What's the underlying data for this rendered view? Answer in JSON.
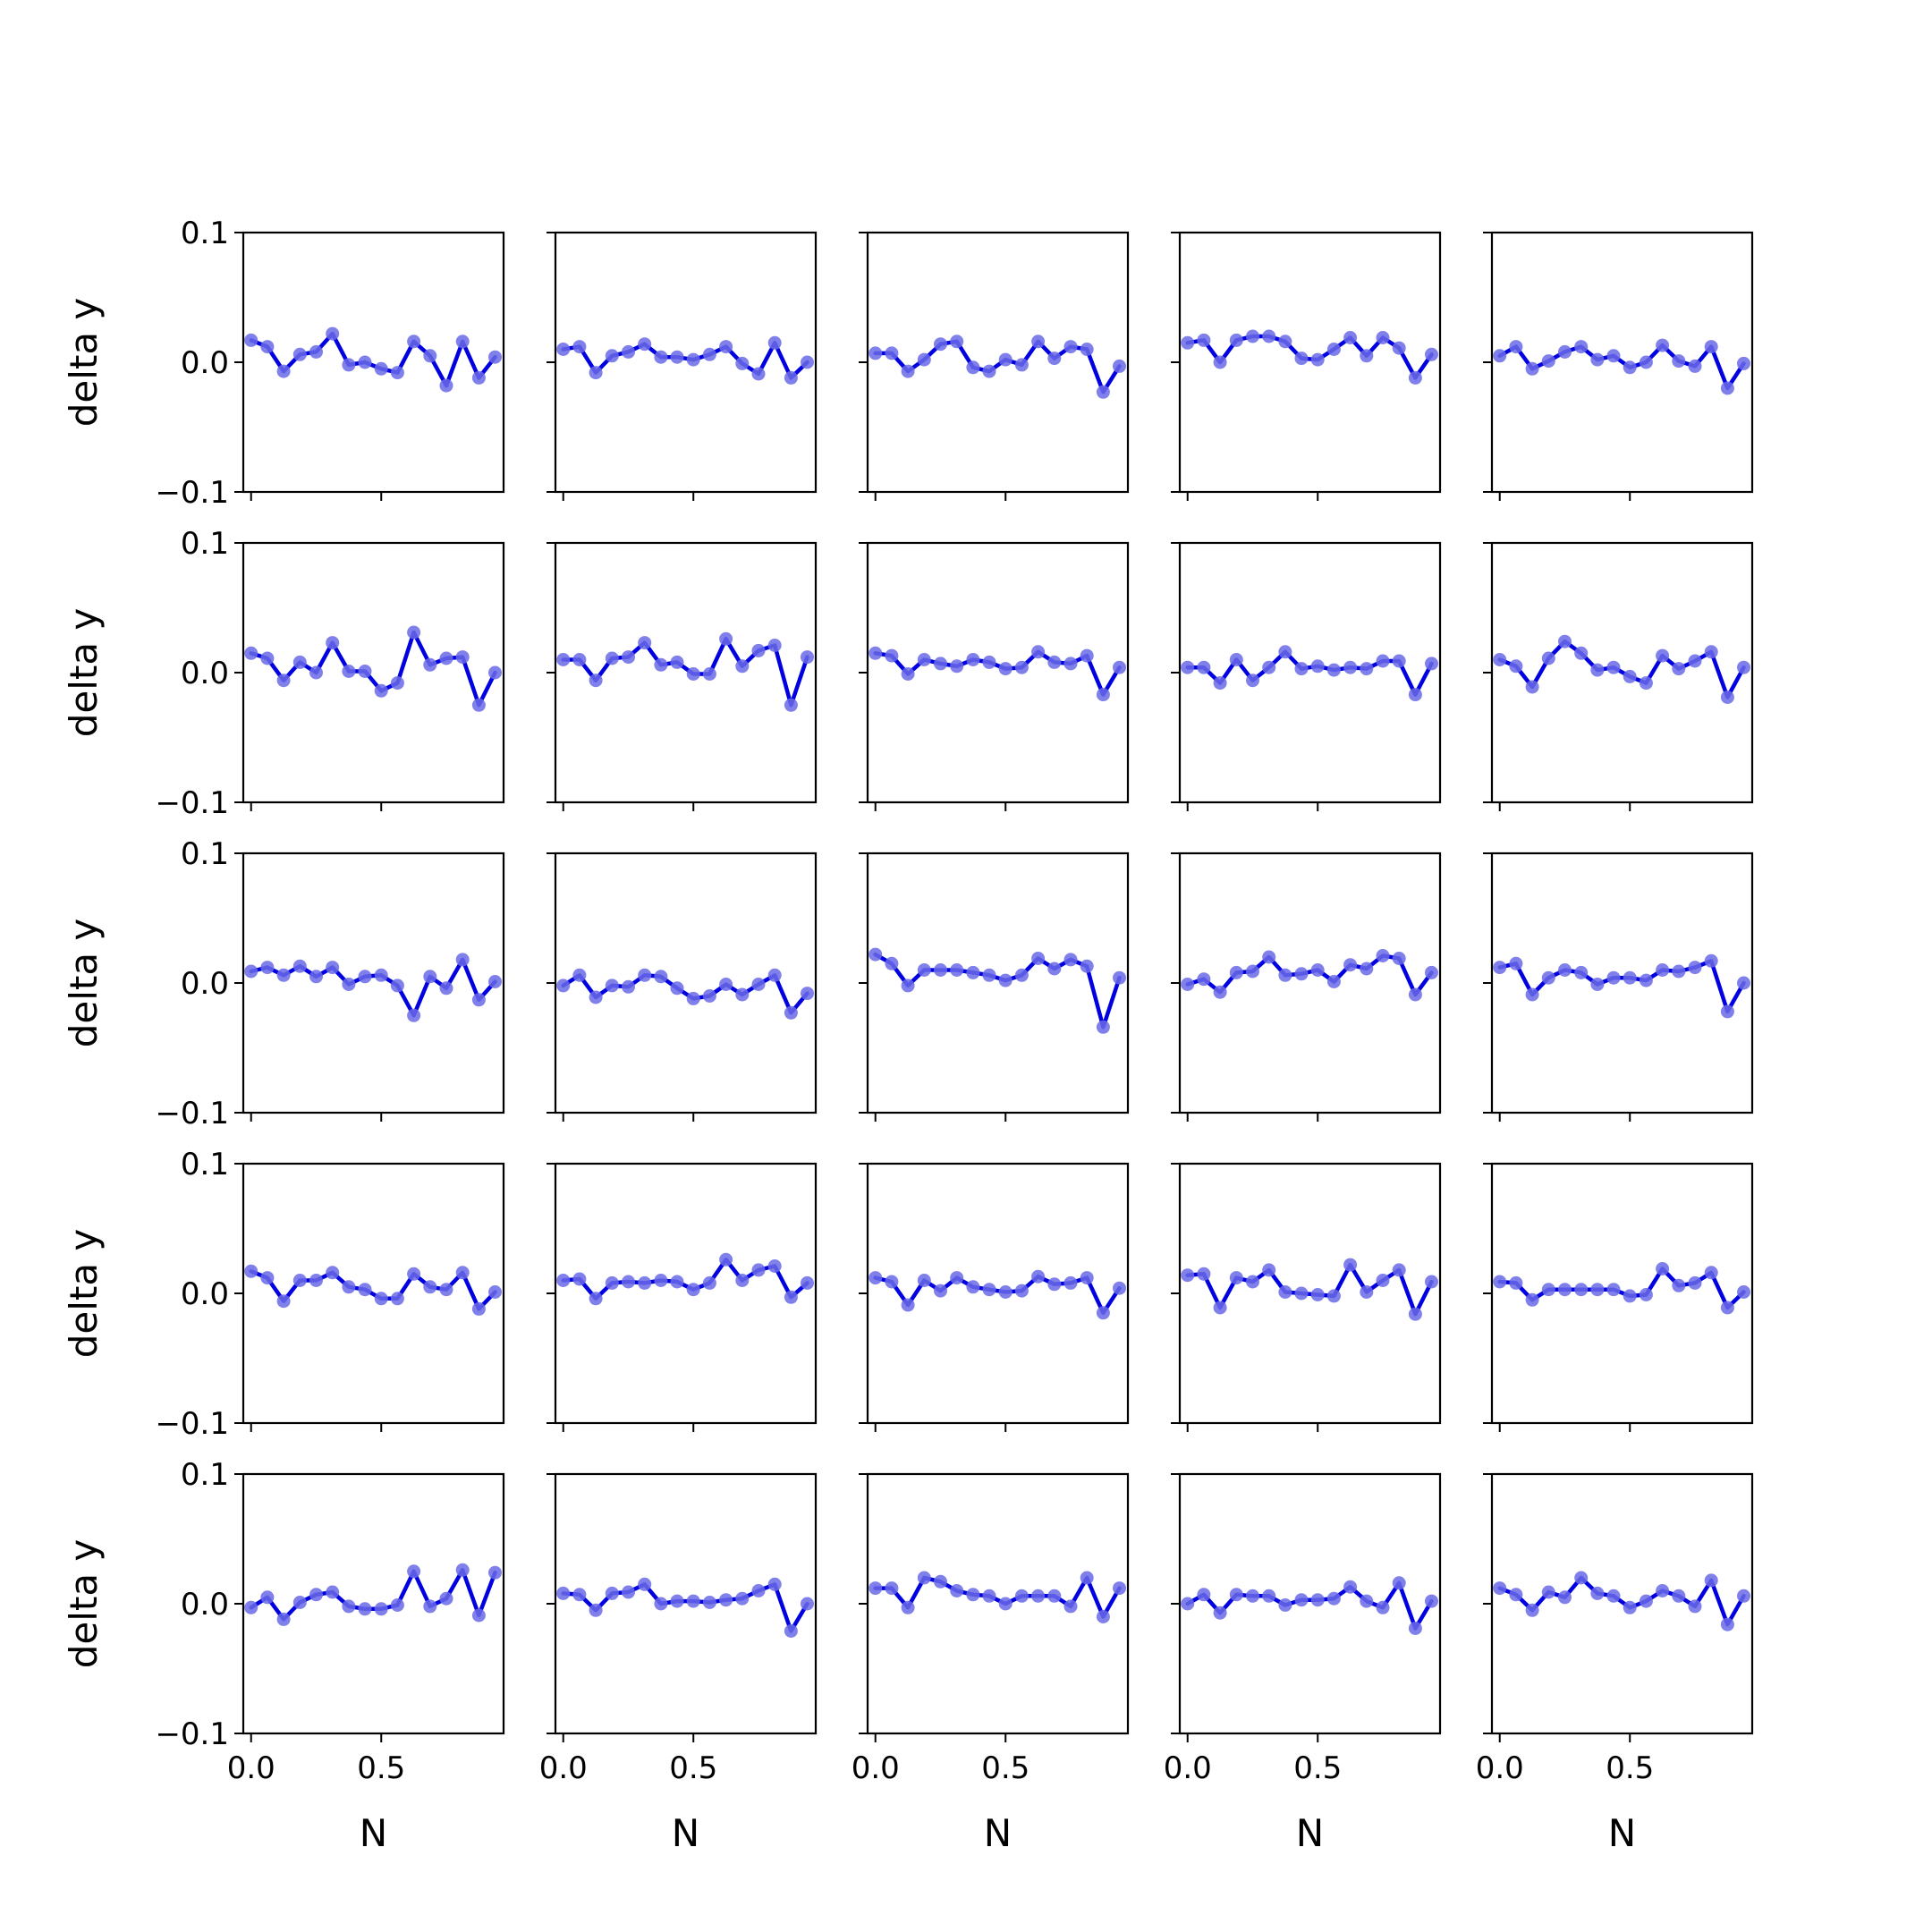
{
  "figure": {
    "grid": "5x5",
    "xlabel": "N",
    "ylabel": "delta y",
    "colors": {
      "line": "#0000e0",
      "marker": "#6a6ae8",
      "axes": "#000000"
    }
  },
  "chart_data": {
    "type": "line",
    "layout": "5x5 grid of subplots, shared axes",
    "x": [
      0.0,
      0.0625,
      0.125,
      0.1875,
      0.25,
      0.3125,
      0.375,
      0.4375,
      0.5,
      0.5625,
      0.625,
      0.6875,
      0.75,
      0.8125,
      0.875,
      0.9375
    ],
    "xlim": [
      -0.03,
      0.97
    ],
    "ylim": [
      -0.1,
      0.1
    ],
    "xticks": [
      0.0,
      0.5
    ],
    "xtick_labels": [
      "0.0",
      "0.5"
    ],
    "yticks": [
      -0.1,
      0.0,
      0.1
    ],
    "ytick_labels": [
      "−0.1",
      "0.0",
      "0.1"
    ],
    "xlabel": "N",
    "ylabel": "delta y",
    "grid": false,
    "markers": true,
    "panels": [
      {
        "row": 1,
        "col": 1,
        "y": [
          0.017,
          0.012,
          -0.007,
          0.006,
          0.008,
          0.022,
          -0.002,
          0.0,
          -0.005,
          -0.008,
          0.016,
          0.005,
          -0.018,
          0.016,
          -0.012,
          0.004
        ]
      },
      {
        "row": 1,
        "col": 2,
        "y": [
          0.01,
          0.012,
          -0.008,
          0.005,
          0.008,
          0.014,
          0.004,
          0.004,
          0.002,
          0.006,
          0.012,
          -0.001,
          -0.009,
          0.015,
          -0.012,
          0.0
        ]
      },
      {
        "row": 1,
        "col": 3,
        "y": [
          0.007,
          0.007,
          -0.007,
          0.002,
          0.014,
          0.016,
          -0.004,
          -0.007,
          0.002,
          -0.002,
          0.016,
          0.003,
          0.012,
          0.01,
          -0.023,
          -0.003
        ]
      },
      {
        "row": 1,
        "col": 4,
        "y": [
          0.015,
          0.017,
          0.0,
          0.017,
          0.02,
          0.02,
          0.016,
          0.003,
          0.002,
          0.01,
          0.019,
          0.005,
          0.019,
          0.011,
          -0.012,
          0.006
        ]
      },
      {
        "row": 1,
        "col": 5,
        "y": [
          0.005,
          0.012,
          -0.005,
          0.001,
          0.008,
          0.012,
          0.002,
          0.005,
          -0.004,
          0.0,
          0.013,
          0.001,
          -0.003,
          0.012,
          -0.02,
          -0.001
        ]
      },
      {
        "row": 2,
        "col": 1,
        "y": [
          0.015,
          0.011,
          -0.006,
          0.008,
          0.0,
          0.023,
          0.001,
          0.001,
          -0.014,
          -0.008,
          0.031,
          0.006,
          0.011,
          0.012,
          -0.025,
          0.0
        ]
      },
      {
        "row": 2,
        "col": 2,
        "y": [
          0.01,
          0.01,
          -0.006,
          0.011,
          0.012,
          0.023,
          0.006,
          0.008,
          -0.001,
          -0.001,
          0.026,
          0.005,
          0.017,
          0.021,
          -0.025,
          0.012
        ]
      },
      {
        "row": 2,
        "col": 3,
        "y": [
          0.015,
          0.013,
          -0.001,
          0.01,
          0.007,
          0.005,
          0.01,
          0.008,
          0.003,
          0.004,
          0.016,
          0.008,
          0.007,
          0.013,
          -0.017,
          0.004
        ]
      },
      {
        "row": 2,
        "col": 4,
        "y": [
          0.004,
          0.004,
          -0.008,
          0.01,
          -0.006,
          0.004,
          0.016,
          0.003,
          0.005,
          0.002,
          0.004,
          0.003,
          0.009,
          0.009,
          -0.017,
          0.007
        ]
      },
      {
        "row": 2,
        "col": 5,
        "y": [
          0.01,
          0.005,
          -0.011,
          0.011,
          0.024,
          0.015,
          0.002,
          0.004,
          -0.003,
          -0.008,
          0.013,
          0.003,
          0.009,
          0.016,
          -0.019,
          0.004
        ]
      },
      {
        "row": 3,
        "col": 1,
        "y": [
          0.009,
          0.012,
          0.006,
          0.013,
          0.005,
          0.012,
          -0.001,
          0.005,
          0.006,
          -0.002,
          -0.025,
          0.005,
          -0.004,
          0.018,
          -0.013,
          0.001
        ]
      },
      {
        "row": 3,
        "col": 2,
        "y": [
          -0.002,
          0.006,
          -0.011,
          -0.002,
          -0.003,
          0.006,
          0.005,
          -0.004,
          -0.012,
          -0.01,
          -0.001,
          -0.009,
          -0.001,
          0.006,
          -0.023,
          -0.008
        ]
      },
      {
        "row": 3,
        "col": 3,
        "y": [
          0.022,
          0.015,
          -0.002,
          0.01,
          0.01,
          0.01,
          0.008,
          0.006,
          0.002,
          0.006,
          0.019,
          0.011,
          0.018,
          0.013,
          -0.034,
          0.004
        ]
      },
      {
        "row": 3,
        "col": 4,
        "y": [
          -0.001,
          0.003,
          -0.007,
          0.008,
          0.009,
          0.02,
          0.006,
          0.007,
          0.01,
          0.001,
          0.014,
          0.011,
          0.021,
          0.019,
          -0.009,
          0.008
        ]
      },
      {
        "row": 3,
        "col": 5,
        "y": [
          0.012,
          0.015,
          -0.009,
          0.004,
          0.01,
          0.008,
          -0.001,
          0.004,
          0.004,
          0.002,
          0.01,
          0.009,
          0.012,
          0.017,
          -0.022,
          0.0
        ]
      },
      {
        "row": 4,
        "col": 1,
        "y": [
          0.017,
          0.012,
          -0.006,
          0.01,
          0.01,
          0.016,
          0.005,
          0.003,
          -0.004,
          -0.004,
          0.015,
          0.005,
          0.003,
          0.016,
          -0.012,
          0.001
        ]
      },
      {
        "row": 4,
        "col": 2,
        "y": [
          0.01,
          0.011,
          -0.004,
          0.008,
          0.009,
          0.008,
          0.01,
          0.009,
          0.003,
          0.008,
          0.026,
          0.01,
          0.018,
          0.021,
          -0.003,
          0.008
        ]
      },
      {
        "row": 4,
        "col": 3,
        "y": [
          0.012,
          0.009,
          -0.009,
          0.01,
          0.002,
          0.012,
          0.005,
          0.003,
          0.001,
          0.002,
          0.013,
          0.007,
          0.008,
          0.012,
          -0.015,
          0.004
        ]
      },
      {
        "row": 4,
        "col": 4,
        "y": [
          0.014,
          0.015,
          -0.011,
          0.012,
          0.009,
          0.018,
          0.001,
          0.0,
          -0.001,
          -0.002,
          0.022,
          0.001,
          0.01,
          0.018,
          -0.016,
          0.009
        ]
      },
      {
        "row": 4,
        "col": 5,
        "y": [
          0.009,
          0.008,
          -0.005,
          0.003,
          0.003,
          0.003,
          0.003,
          0.003,
          -0.002,
          -0.001,
          0.019,
          0.006,
          0.008,
          0.016,
          -0.011,
          0.001
        ]
      },
      {
        "row": 5,
        "col": 1,
        "y": [
          -0.003,
          0.005,
          -0.012,
          0.001,
          0.007,
          0.009,
          -0.002,
          -0.004,
          -0.004,
          -0.001,
          0.025,
          -0.002,
          0.004,
          0.026,
          -0.009,
          0.024
        ]
      },
      {
        "row": 5,
        "col": 2,
        "y": [
          0.008,
          0.007,
          -0.005,
          0.008,
          0.009,
          0.015,
          0.0,
          0.002,
          0.002,
          0.001,
          0.003,
          0.004,
          0.01,
          0.015,
          -0.021,
          0.0
        ]
      },
      {
        "row": 5,
        "col": 3,
        "y": [
          0.012,
          0.012,
          -0.003,
          0.02,
          0.017,
          0.01,
          0.007,
          0.006,
          0.0,
          0.006,
          0.006,
          0.006,
          -0.002,
          0.02,
          -0.01,
          0.012
        ]
      },
      {
        "row": 5,
        "col": 4,
        "y": [
          0.0,
          0.007,
          -0.007,
          0.007,
          0.006,
          0.006,
          -0.001,
          0.003,
          0.003,
          0.004,
          0.013,
          0.002,
          -0.003,
          0.016,
          -0.019,
          0.002
        ]
      },
      {
        "row": 5,
        "col": 5,
        "y": [
          0.012,
          0.007,
          -0.005,
          0.009,
          0.005,
          0.02,
          0.008,
          0.006,
          -0.003,
          0.002,
          0.01,
          0.006,
          -0.002,
          0.018,
          -0.016,
          0.006
        ]
      }
    ]
  }
}
